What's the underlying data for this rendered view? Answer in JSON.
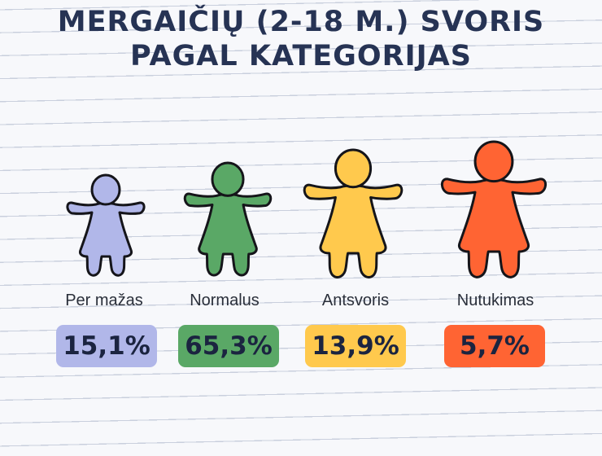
{
  "title": {
    "line1": "MERGAIČIŲ (2-18 M.) SVORIS",
    "line2": "PAGAL KATEGORIJAS"
  },
  "chart_data": {
    "type": "pictogram",
    "title": "MERGAIČIŲ (2-18 M.) SVORIS PAGAL KATEGORIJAS",
    "unit": "%",
    "categories": [
      "Per mažas",
      "Normalus",
      "Antsvoris",
      "Nutukimas"
    ],
    "values": [
      15.1,
      65.3,
      13.9,
      5.7
    ],
    "value_labels": [
      "15,1%",
      "65,3%",
      "13,9%",
      "5,7%"
    ],
    "colors": [
      "#b1b7e9",
      "#5aa866",
      "#ffc94d",
      "#ff6433"
    ]
  }
}
